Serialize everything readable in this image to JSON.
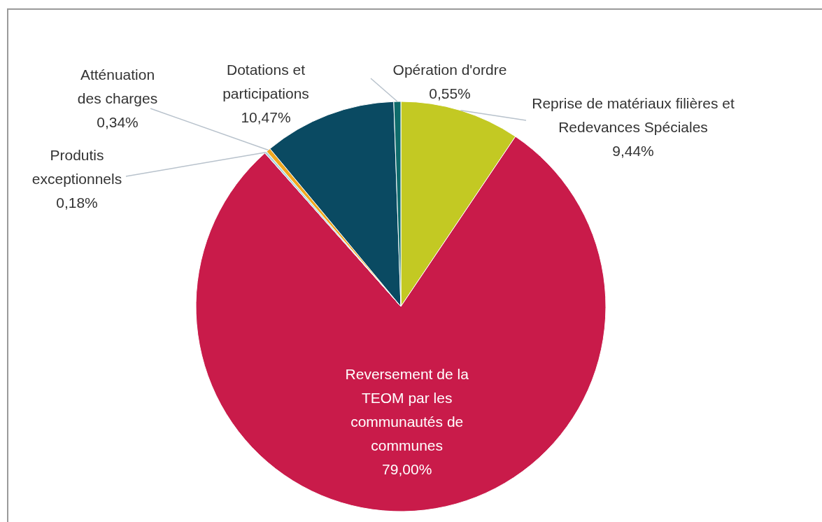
{
  "chart_data": {
    "type": "pie",
    "categories": [
      "Reprise de matériaux filières et Redevances Spéciales",
      "Reversement de la TEOM par les communautés de communes",
      "Produtis exceptionnels",
      "Atténuation des charges",
      "Dotations et participations",
      "Opération d'ordre"
    ],
    "values": [
      9.44,
      79.0,
      0.18,
      0.34,
      10.47,
      0.55
    ],
    "value_labels": [
      "9,44%",
      "79,00%",
      "0,18%",
      "0,34%",
      "10,47%",
      "0,55%"
    ],
    "colors": [
      "#c3c923",
      "#c91b4a",
      "#a9d6de",
      "#f0a820",
      "#0a4a62",
      "#0e6b6b"
    ]
  }
}
